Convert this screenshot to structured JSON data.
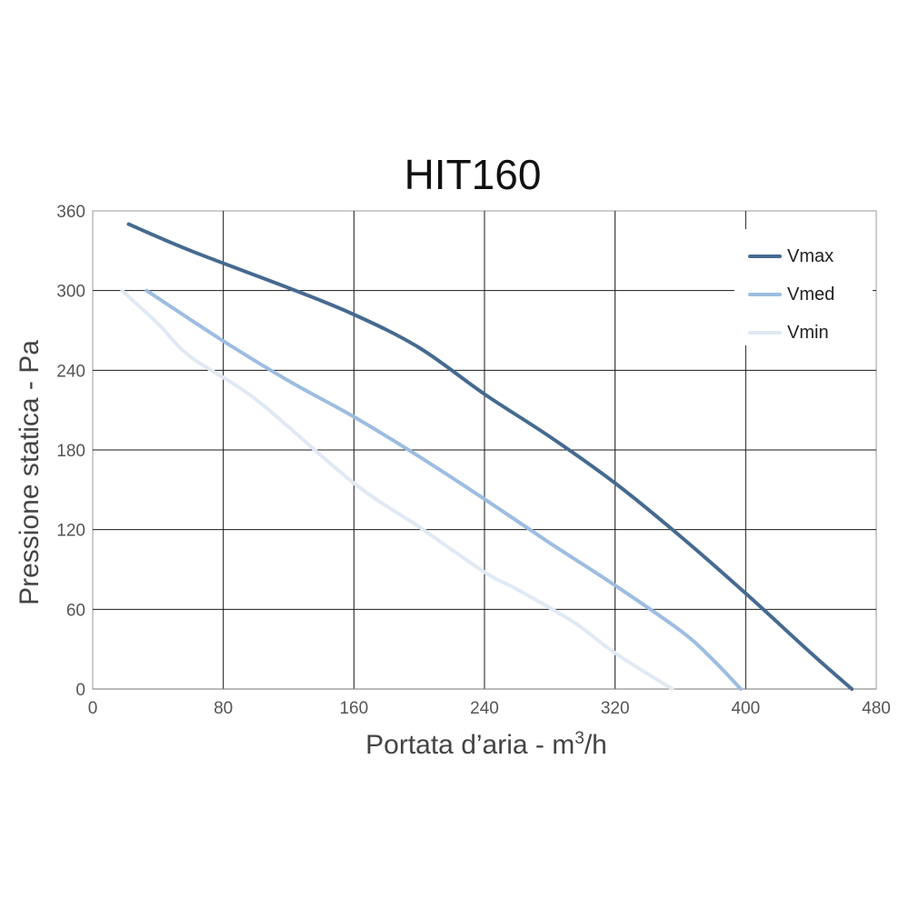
{
  "chart_data": {
    "type": "line",
    "title": "HIT160",
    "xlabel": "Portata d’aria - m",
    "xlabel_sup": "3",
    "xlabel_tail": "/h",
    "ylabel": "Pressione statica - Pa",
    "xlim": [
      0,
      480
    ],
    "ylim": [
      0,
      360
    ],
    "xticks": [
      "0",
      "80",
      "160",
      "240",
      "320",
      "400",
      "480"
    ],
    "yticks": [
      "0",
      "60",
      "120",
      "180",
      "240",
      "300",
      "360"
    ],
    "grid": true,
    "legend_position": "top-right",
    "series": [
      {
        "name": "Vmax",
        "color": "#466a90",
        "points": [
          [
            22,
            350
          ],
          [
            60,
            330
          ],
          [
            120,
            302
          ],
          [
            160,
            282
          ],
          [
            200,
            257
          ],
          [
            240,
            222
          ],
          [
            280,
            190
          ],
          [
            320,
            155
          ],
          [
            360,
            115
          ],
          [
            400,
            72
          ],
          [
            440,
            27
          ],
          [
            465,
            0
          ]
        ]
      },
      {
        "name": "Vmed",
        "color": "#9dbde0",
        "points": [
          [
            33,
            300
          ],
          [
            80,
            262
          ],
          [
            120,
            232
          ],
          [
            160,
            205
          ],
          [
            200,
            175
          ],
          [
            240,
            143
          ],
          [
            280,
            110
          ],
          [
            320,
            78
          ],
          [
            360,
            44
          ],
          [
            380,
            22
          ],
          [
            397,
            0
          ]
        ]
      },
      {
        "name": "Vmin",
        "color": "#e0e9f4",
        "points": [
          [
            18,
            300
          ],
          [
            40,
            275
          ],
          [
            60,
            250
          ],
          [
            100,
            218
          ],
          [
            160,
            155
          ],
          [
            200,
            122
          ],
          [
            240,
            88
          ],
          [
            260,
            75
          ],
          [
            295,
            50
          ],
          [
            320,
            27
          ],
          [
            355,
            0
          ]
        ]
      }
    ]
  }
}
